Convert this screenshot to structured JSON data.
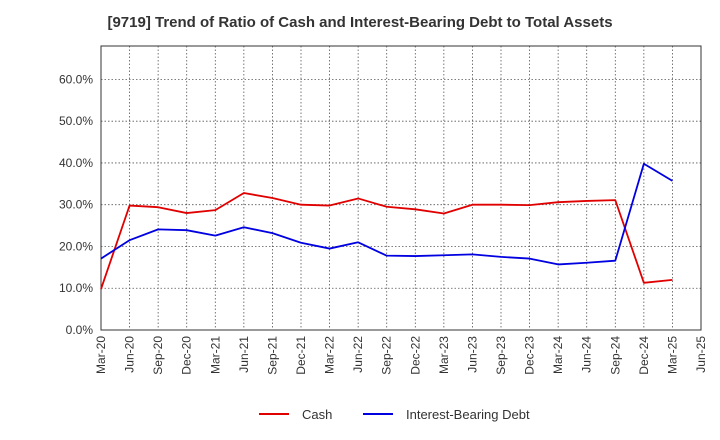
{
  "chart_data": {
    "type": "line",
    "title": "[9719]  Trend of Ratio of Cash and Interest-Bearing Debt to Total Assets",
    "xlabel": "",
    "ylabel": "",
    "ylim": [
      0,
      0.68
    ],
    "y_ticks": [
      "0.0%",
      "10.0%",
      "20.0%",
      "30.0%",
      "40.0%",
      "50.0%",
      "60.0%"
    ],
    "y_tick_values": [
      0,
      0.1,
      0.2,
      0.3,
      0.4,
      0.5,
      0.6
    ],
    "x_tick_labels": [
      "Mar-20",
      "Jun-20",
      "Sep-20",
      "Dec-20",
      "Mar-21",
      "Jun-21",
      "Sep-21",
      "Dec-21",
      "Mar-22",
      "Jun-22",
      "Sep-22",
      "Dec-22",
      "Mar-23",
      "Jun-23",
      "Sep-23",
      "Dec-23",
      "Mar-24",
      "Jun-24",
      "Sep-24",
      "Dec-24",
      "Mar-25",
      "Jun-25"
    ],
    "categories": [
      "Mar-20",
      "Jun-20",
      "Sep-20",
      "Dec-20",
      "Mar-21",
      "Jun-21",
      "Sep-21",
      "Dec-21",
      "Mar-22",
      "Jun-22",
      "Sep-22",
      "Dec-22",
      "Mar-23",
      "Jun-23",
      "Sep-23",
      "Dec-23",
      "Mar-24",
      "Jun-24",
      "Sep-24",
      "Dec-24",
      "Mar-25"
    ],
    "grid": true,
    "legend_position": "bottom",
    "series": [
      {
        "name": "Cash",
        "color": "#e00000",
        "values": [
          0.098,
          0.298,
          0.294,
          0.28,
          0.287,
          0.328,
          0.316,
          0.3,
          0.298,
          0.315,
          0.295,
          0.289,
          0.279,
          0.3,
          0.3,
          0.299,
          0.306,
          0.309,
          0.311,
          0.113,
          0.12
        ]
      },
      {
        "name": "Interest-Bearing Debt",
        "color": "#0000e0",
        "values": [
          0.171,
          0.215,
          0.241,
          0.239,
          0.226,
          0.246,
          0.232,
          0.209,
          0.195,
          0.21,
          0.178,
          0.177,
          0.179,
          0.181,
          0.175,
          0.171,
          0.157,
          0.161,
          0.166,
          0.398,
          0.357
        ]
      }
    ]
  }
}
